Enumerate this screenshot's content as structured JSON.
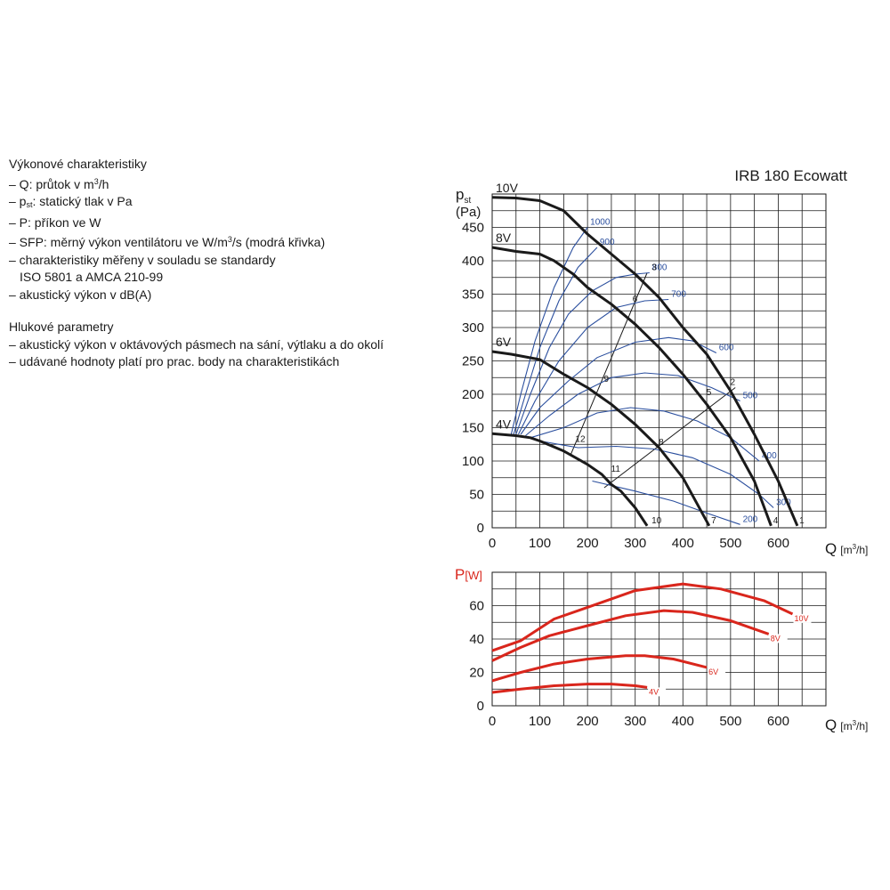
{
  "notes": {
    "performance_heading": "Výkonové charakteristiky",
    "q_prefix": "– Q: průtok v m",
    "q_sup": "3",
    "q_suffix": "/h",
    "p_prefix": "– p",
    "p_sub": "st",
    "p_suffix": ": statický tlak v Pa",
    "power": "– P: příkon ve W",
    "sfp_prefix": "– SFP: měrný výkon ventilátoru ve W/m",
    "sfp_sup": "3",
    "sfp_suffix": "/s (modrá křivka)",
    "standard_line1": "– charakteristiky měřeny v souladu se standardy",
    "standard_line2": "ISO 5801 a AMCA 210-99",
    "acoustic": "– akustický výkon v dB(A)",
    "noise_heading": "Hlukové parametry",
    "noise_line1": "– akustický výkon v oktávových pásmech na sání, výtlaku a do okolí",
    "noise_line2": "– udávané hodnoty platí pro prac. body na charakteristikách"
  },
  "chart_data": [
    {
      "type": "line",
      "title": "IRB 180 Ecowatt",
      "ylabel_main": "p",
      "ylabel_sub": "st",
      "yunit": "(Pa)",
      "xlabel": "Q",
      "xunit_prefix": "[m",
      "xunit_sup": "3",
      "xunit_suffix": "/h]",
      "xlim": [
        0,
        700
      ],
      "ylim": [
        0,
        500
      ],
      "xticks": [
        "0",
        "100",
        "200",
        "300",
        "400",
        "500",
        "600"
      ],
      "yticks": [
        "0",
        "50",
        "100",
        "150",
        "200",
        "250",
        "300",
        "350",
        "400",
        "450"
      ],
      "grid": true,
      "colors": {
        "fan": "#1a1a1a",
        "sfp": "#2b4f9e",
        "system": "#1a1a1a"
      },
      "fan_curves": [
        {
          "name": "10V",
          "points": [
            [
              0,
              495
            ],
            [
              50,
              494
            ],
            [
              100,
              490
            ],
            [
              150,
              475
            ],
            [
              200,
              440
            ],
            [
              250,
              410
            ],
            [
              300,
              380
            ],
            [
              350,
              345
            ],
            [
              400,
              300
            ],
            [
              450,
              260
            ],
            [
              500,
              205
            ],
            [
              550,
              140
            ],
            [
              600,
              70
            ],
            [
              640,
              3
            ]
          ]
        },
        {
          "name": "8V",
          "points": [
            [
              0,
              420
            ],
            [
              50,
              414
            ],
            [
              100,
              410
            ],
            [
              130,
              400
            ],
            [
              170,
              380
            ],
            [
              200,
              360
            ],
            [
              250,
              335
            ],
            [
              300,
              305
            ],
            [
              350,
              270
            ],
            [
              400,
              230
            ],
            [
              450,
              185
            ],
            [
              500,
              135
            ],
            [
              550,
              70
            ],
            [
              585,
              3
            ]
          ]
        },
        {
          "name": "6V",
          "points": [
            [
              0,
              264
            ],
            [
              40,
              260
            ],
            [
              100,
              252
            ],
            [
              150,
              230
            ],
            [
              200,
              210
            ],
            [
              250,
              185
            ],
            [
              300,
              155
            ],
            [
              350,
              120
            ],
            [
              400,
              75
            ],
            [
              455,
              3
            ]
          ]
        },
        {
          "name": "4V",
          "points": [
            [
              0,
              141
            ],
            [
              50,
              138
            ],
            [
              80,
              135
            ],
            [
              100,
              130
            ],
            [
              150,
              115
            ],
            [
              200,
              95
            ],
            [
              230,
              80
            ],
            [
              250,
              65
            ],
            [
              270,
              55
            ],
            [
              300,
              30
            ],
            [
              325,
              3
            ]
          ]
        }
      ],
      "sfp_curves": [
        {
          "label": "1000",
          "points": [
            [
              40,
              140
            ],
            [
              60,
              200
            ],
            [
              90,
              280
            ],
            [
              130,
              360
            ],
            [
              170,
              420
            ],
            [
              200,
              450
            ]
          ]
        },
        {
          "label": "900",
          "points": [
            [
              45,
              140
            ],
            [
              70,
              200
            ],
            [
              100,
              270
            ],
            [
              140,
              340
            ],
            [
              180,
              390
            ],
            [
              220,
              420
            ]
          ]
        },
        {
          "label": "800",
          "points": [
            [
              50,
              140
            ],
            [
              80,
              200
            ],
            [
              120,
              270
            ],
            [
              160,
              320
            ],
            [
              210,
              355
            ],
            [
              260,
              375
            ],
            [
              300,
              380
            ],
            [
              330,
              382
            ]
          ]
        },
        {
          "label": "700",
          "points": [
            [
              55,
              140
            ],
            [
              90,
              190
            ],
            [
              140,
              250
            ],
            [
              200,
              300
            ],
            [
              260,
              330
            ],
            [
              320,
              340
            ],
            [
              370,
              342
            ]
          ]
        },
        {
          "label": "600",
          "points": [
            [
              60,
              140
            ],
            [
              100,
              180
            ],
            [
              160,
              220
            ],
            [
              220,
              255
            ],
            [
              300,
              278
            ],
            [
              370,
              285
            ],
            [
              420,
              280
            ],
            [
              470,
              262
            ]
          ]
        },
        {
          "label": "500",
          "points": [
            [
              70,
              138
            ],
            [
              120,
              168
            ],
            [
              180,
              200
            ],
            [
              250,
              225
            ],
            [
              320,
              232
            ],
            [
              390,
              228
            ],
            [
              460,
              210
            ],
            [
              520,
              190
            ]
          ]
        },
        {
          "label": "400",
          "points": [
            [
              80,
              135
            ],
            [
              150,
              150
            ],
            [
              220,
              172
            ],
            [
              290,
              180
            ],
            [
              360,
              175
            ],
            [
              430,
              160
            ],
            [
              500,
              135
            ],
            [
              560,
              100
            ]
          ]
        },
        {
          "label": "300",
          "points": [
            [
              100,
              130
            ],
            [
              180,
              120
            ],
            [
              260,
              122
            ],
            [
              340,
              118
            ],
            [
              420,
              105
            ],
            [
              500,
              80
            ],
            [
              560,
              50
            ],
            [
              590,
              30
            ]
          ]
        },
        {
          "label": "200",
          "points": [
            [
              210,
              70
            ],
            [
              300,
              55
            ],
            [
              380,
              40
            ],
            [
              450,
              22
            ],
            [
              520,
              5
            ]
          ]
        }
      ],
      "system_lines": [
        {
          "points": [
            [
              165,
              110
            ],
            [
              325,
              382
            ]
          ]
        },
        {
          "points": [
            [
              235,
              60
            ],
            [
              510,
              210
            ]
          ]
        }
      ],
      "operating_points": [
        {
          "label": "1",
          "x": 635,
          "y": 3
        },
        {
          "label": "2",
          "x": 490,
          "y": 210
        },
        {
          "label": "3",
          "x": 325,
          "y": 382
        },
        {
          "label": "4",
          "x": 580,
          "y": 3
        },
        {
          "label": "5",
          "x": 440,
          "y": 195
        },
        {
          "label": "6",
          "x": 285,
          "y": 335
        },
        {
          "label": "7",
          "x": 450,
          "y": 3
        },
        {
          "label": "8",
          "x": 340,
          "y": 120
        },
        {
          "label": "9",
          "x": 225,
          "y": 215
        },
        {
          "label": "10",
          "x": 325,
          "y": 3
        },
        {
          "label": "11",
          "x": 240,
          "y": 80
        },
        {
          "label": "12",
          "x": 165,
          "y": 125
        }
      ]
    },
    {
      "type": "line",
      "ylabel_main": "P",
      "yunit": "[W]",
      "xlabel": "Q",
      "xunit_prefix": "[m",
      "xunit_sup": "3",
      "xunit_suffix": "/h]",
      "xlim": [
        0,
        700
      ],
      "ylim": [
        0,
        80
      ],
      "xticks": [
        "0",
        "100",
        "200",
        "300",
        "400",
        "500",
        "600"
      ],
      "yticks": [
        "0",
        "20",
        "40",
        "60"
      ],
      "grid": true,
      "colors": {
        "power": "#d9261c"
      },
      "series": [
        {
          "name": "10V",
          "points": [
            [
              0,
              33
            ],
            [
              60,
              39
            ],
            [
              130,
              52
            ],
            [
              200,
              59
            ],
            [
              300,
              69
            ],
            [
              400,
              73
            ],
            [
              480,
              70
            ],
            [
              570,
              63
            ],
            [
              630,
              55
            ]
          ]
        },
        {
          "name": "8V",
          "points": [
            [
              0,
              27
            ],
            [
              60,
              35
            ],
            [
              120,
              42
            ],
            [
              200,
              48
            ],
            [
              280,
              54
            ],
            [
              360,
              57
            ],
            [
              420,
              56
            ],
            [
              500,
              51
            ],
            [
              580,
              43
            ]
          ]
        },
        {
          "name": "6V",
          "points": [
            [
              0,
              15
            ],
            [
              60,
              20
            ],
            [
              130,
              25
            ],
            [
              200,
              28
            ],
            [
              280,
              30
            ],
            [
              320,
              30
            ],
            [
              380,
              28
            ],
            [
              450,
              23
            ]
          ]
        },
        {
          "name": "4V",
          "points": [
            [
              0,
              8
            ],
            [
              60,
              10
            ],
            [
              130,
              12
            ],
            [
              200,
              13
            ],
            [
              250,
              13
            ],
            [
              300,
              12
            ],
            [
              325,
              11
            ]
          ]
        }
      ]
    }
  ]
}
